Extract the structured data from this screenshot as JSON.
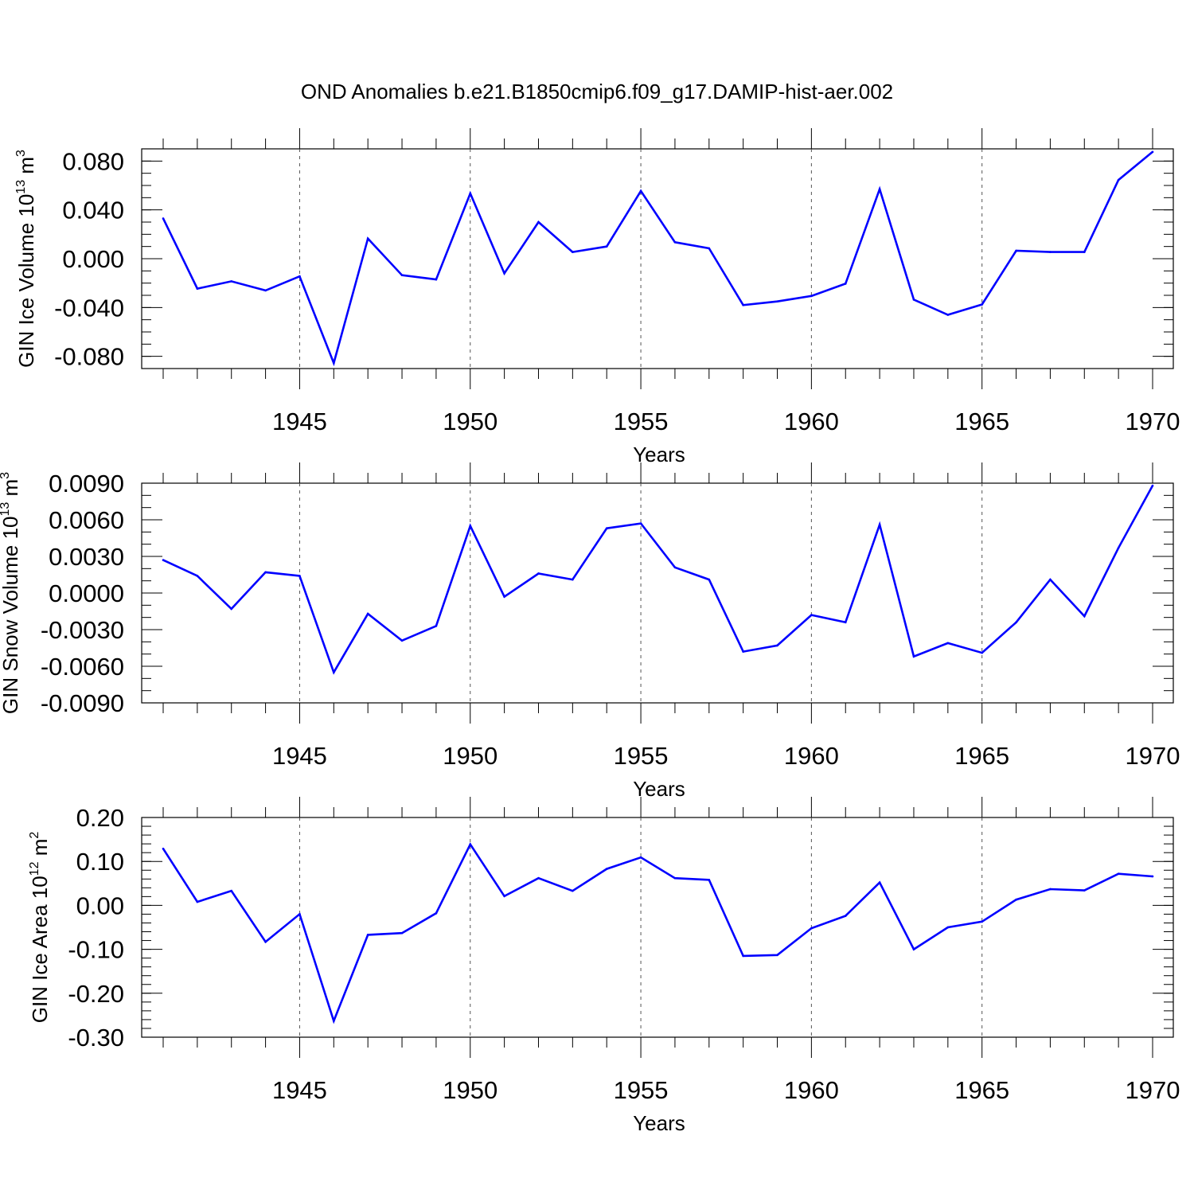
{
  "title": "OND Anomalies b.e21.B1850cmip6.f09_g17.DAMIP-hist-aer.002",
  "colors": {
    "line": "#0000ff",
    "axis": "#000000",
    "grid": "#555555"
  },
  "chart_data": [
    {
      "type": "line",
      "ylabel": {
        "text": "GIN Ice Volume 10",
        "exp": "13",
        "unit": " m",
        "unit_exp": "3"
      },
      "xlabel": "Years",
      "xlim": [
        1941,
        1970
      ],
      "ylim": [
        -0.09,
        0.09
      ],
      "x_ticks": [
        "1945",
        "1950",
        "1955",
        "1960",
        "1965",
        "1970"
      ],
      "y_ticks": [
        {
          "v": -0.08,
          "label": "-0.080"
        },
        {
          "v": -0.04,
          "label": "-0.040"
        },
        {
          "v": 0.0,
          "label": "0.000"
        },
        {
          "v": 0.04,
          "label": "0.040"
        },
        {
          "v": 0.08,
          "label": "0.080"
        }
      ],
      "y_minor_step": 0.01,
      "grid": "vertical dashed at major x ticks",
      "x": [
        1941,
        1942,
        1943,
        1944,
        1945,
        1946,
        1947,
        1948,
        1949,
        1950,
        1951,
        1952,
        1953,
        1954,
        1955,
        1956,
        1957,
        1958,
        1959,
        1960,
        1961,
        1962,
        1963,
        1964,
        1965,
        1966,
        1967,
        1968,
        1969,
        1970
      ],
      "values": [
        0.033,
        -0.0245,
        -0.0185,
        -0.026,
        -0.0145,
        -0.0855,
        0.0165,
        -0.0135,
        -0.017,
        0.0535,
        -0.012,
        0.03,
        0.0055,
        0.01,
        0.0555,
        0.0135,
        0.0085,
        -0.038,
        -0.035,
        -0.0305,
        -0.0205,
        0.057,
        -0.0335,
        -0.046,
        -0.0375,
        0.0065,
        0.0055,
        0.0055,
        0.0645,
        0.0875
      ]
    },
    {
      "type": "line",
      "ylabel": {
        "text": "GIN Snow Volume 10",
        "exp": "13",
        "unit": " m",
        "unit_exp": "3"
      },
      "xlabel": "Years",
      "xlim": [
        1941,
        1970
      ],
      "ylim": [
        -0.009,
        0.009
      ],
      "x_ticks": [
        "1945",
        "1950",
        "1955",
        "1960",
        "1965",
        "1970"
      ],
      "y_ticks": [
        {
          "v": -0.009,
          "label": "-0.0090"
        },
        {
          "v": -0.006,
          "label": "-0.0060"
        },
        {
          "v": -0.003,
          "label": "-0.0030"
        },
        {
          "v": 0.0,
          "label": "0.0000"
        },
        {
          "v": 0.003,
          "label": "0.0030"
        },
        {
          "v": 0.006,
          "label": "0.0060"
        },
        {
          "v": 0.009,
          "label": "0.0090"
        }
      ],
      "y_minor_step": 0.001,
      "grid": "vertical dashed at major x ticks",
      "x": [
        1941,
        1942,
        1943,
        1944,
        1945,
        1946,
        1947,
        1948,
        1949,
        1950,
        1951,
        1952,
        1953,
        1954,
        1955,
        1956,
        1957,
        1958,
        1959,
        1960,
        1961,
        1962,
        1963,
        1964,
        1965,
        1966,
        1967,
        1968,
        1969,
        1970
      ],
      "values": [
        0.0027,
        0.0014,
        -0.0013,
        0.0017,
        0.0014,
        -0.0065,
        -0.0017,
        -0.0039,
        -0.0027,
        0.0055,
        -0.0003,
        0.0016,
        0.0011,
        0.0053,
        0.0057,
        0.0021,
        0.0011,
        -0.0048,
        -0.0043,
        -0.0018,
        -0.0024,
        0.0056,
        -0.0052,
        -0.0041,
        -0.0049,
        -0.0024,
        0.0011,
        -0.0019,
        0.0037,
        0.0088
      ]
    },
    {
      "type": "line",
      "ylabel": {
        "text": "GIN Ice Area 10",
        "exp": "12",
        "unit": " m",
        "unit_exp": "2"
      },
      "xlabel": "Years",
      "xlim": [
        1941,
        1970
      ],
      "ylim": [
        -0.3,
        0.2
      ],
      "x_ticks": [
        "1945",
        "1950",
        "1955",
        "1960",
        "1965",
        "1970"
      ],
      "y_ticks": [
        {
          "v": -0.3,
          "label": "-0.30"
        },
        {
          "v": -0.2,
          "label": "-0.20"
        },
        {
          "v": -0.1,
          "label": "-0.10"
        },
        {
          "v": 0.0,
          "label": "0.00"
        },
        {
          "v": 0.1,
          "label": "0.10"
        },
        {
          "v": 0.2,
          "label": "0.20"
        }
      ],
      "y_minor_step": 0.02,
      "grid": "vertical dashed at major x ticks",
      "x": [
        1941,
        1942,
        1943,
        1944,
        1945,
        1946,
        1947,
        1948,
        1949,
        1950,
        1951,
        1952,
        1953,
        1954,
        1955,
        1956,
        1957,
        1958,
        1959,
        1960,
        1961,
        1962,
        1963,
        1964,
        1965,
        1966,
        1967,
        1968,
        1969,
        1970
      ],
      "values": [
        0.129,
        0.008,
        0.033,
        -0.083,
        -0.02,
        -0.263,
        -0.067,
        -0.063,
        -0.018,
        0.139,
        0.021,
        0.062,
        0.033,
        0.083,
        0.109,
        0.062,
        0.058,
        -0.115,
        -0.113,
        -0.052,
        -0.024,
        0.052,
        -0.1,
        -0.05,
        -0.037,
        0.013,
        0.037,
        0.034,
        0.072,
        0.066
      ]
    }
  ]
}
